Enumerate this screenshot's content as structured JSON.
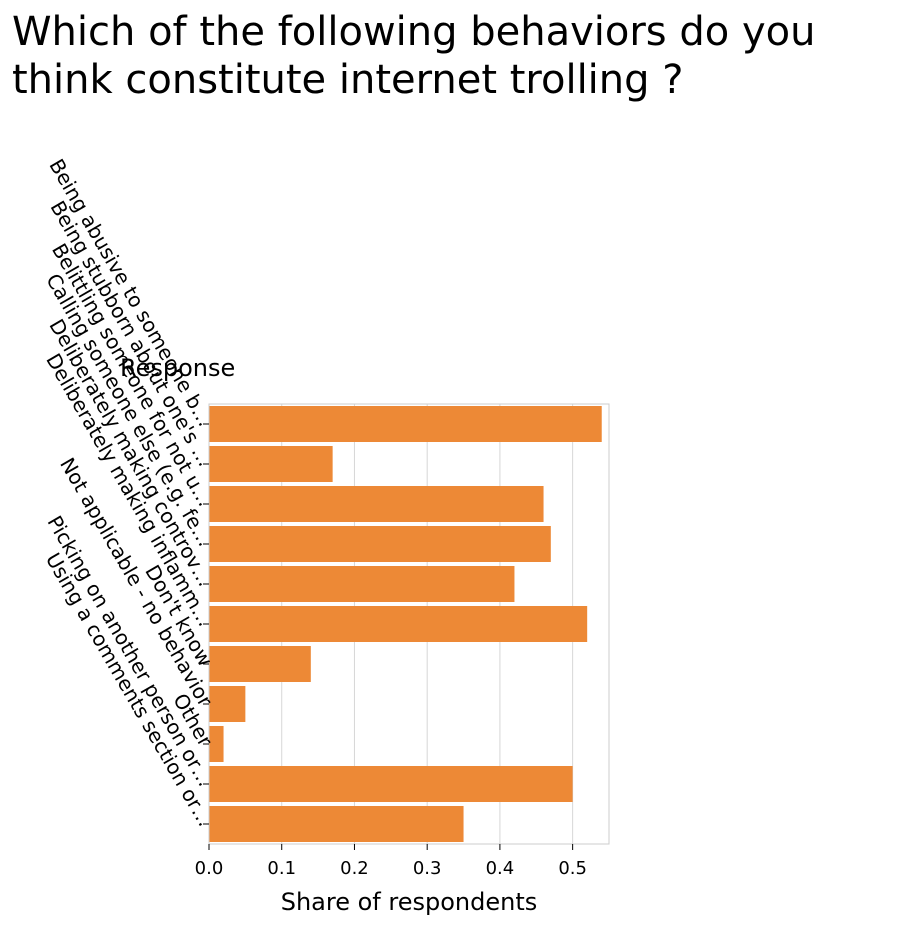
{
  "chart_data": {
    "type": "bar",
    "orientation": "horizontal",
    "title": "Which of the following behaviors do you think constitute internet trolling ?",
    "xlabel": "Share of respondents",
    "ylabel": "Response",
    "xlim": [
      0,
      0.55
    ],
    "xticks": [
      "0.0",
      "0.1",
      "0.2",
      "0.3",
      "0.4",
      "0.5"
    ],
    "grid": "vertical",
    "bar_color": "#ed8936",
    "categories": [
      "Being abusive to someone b…",
      "Being stubborn about one's …",
      "Belittling someone for not u…",
      "Calling someone else (e.g. fe…",
      "Deliberately making controv…",
      "Deliberately making inflamm…",
      "Don't know",
      "Not applicable - no behavior",
      "Other",
      "Picking on another person or…",
      "Using a comments section or…"
    ],
    "values": [
      0.54,
      0.17,
      0.46,
      0.47,
      0.42,
      0.52,
      0.14,
      0.05,
      0.02,
      0.5,
      0.35
    ]
  }
}
